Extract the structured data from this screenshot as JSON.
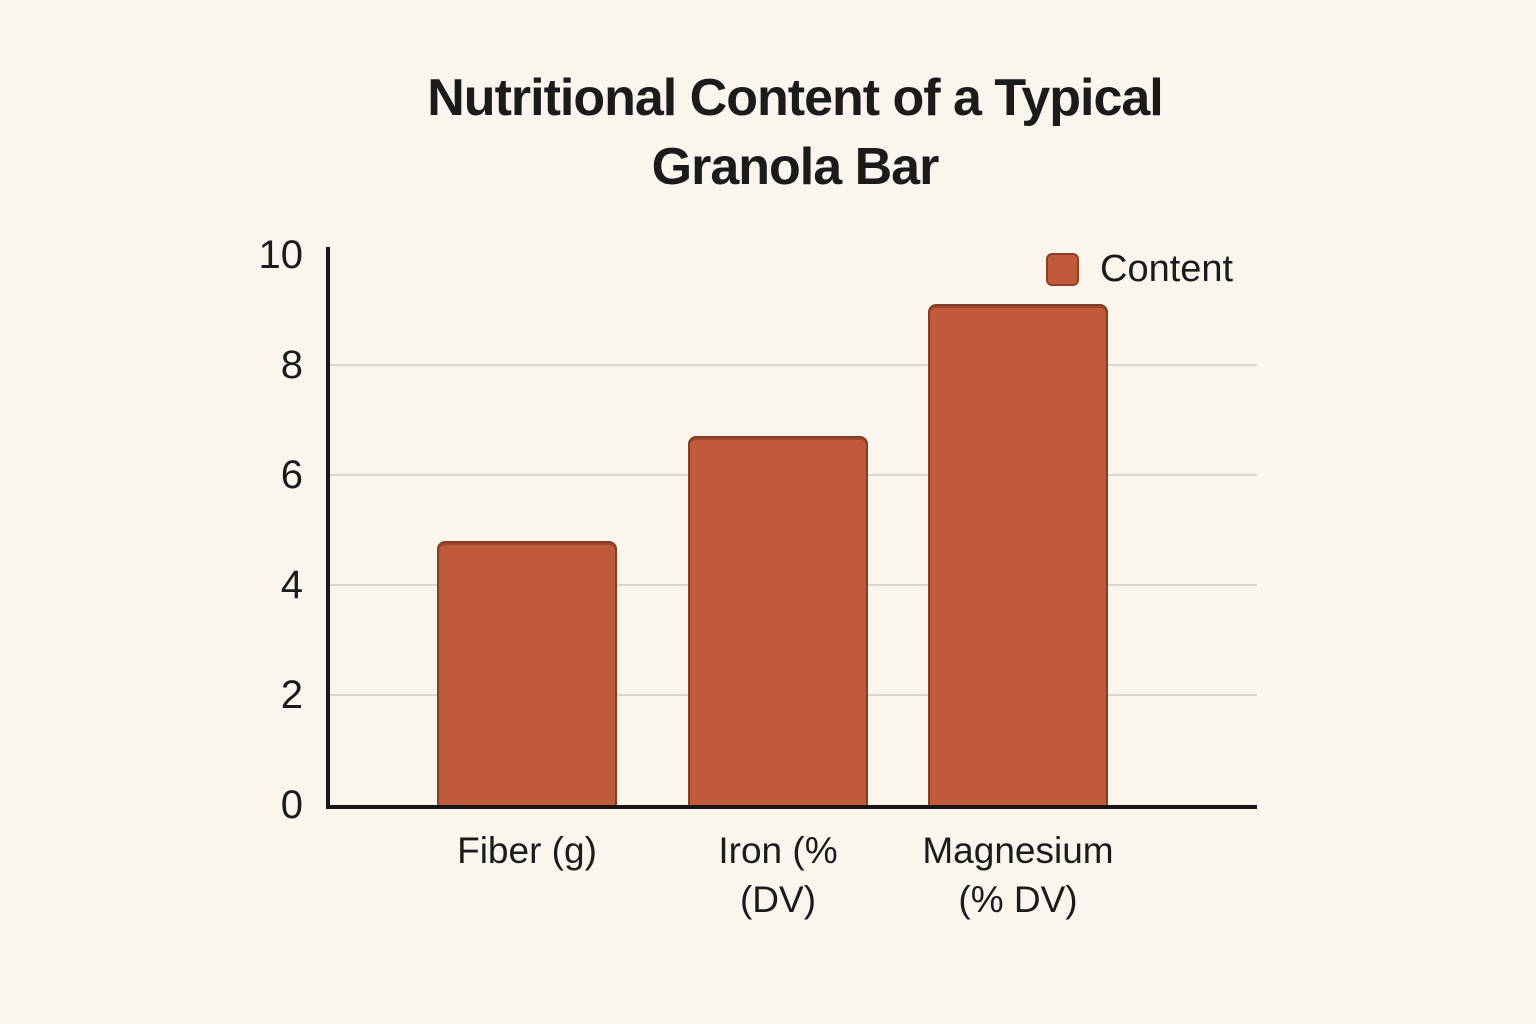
{
  "chart_data": {
    "type": "bar",
    "title": "Nutritional Content of a Typical\nGranola Bar",
    "categories": [
      "Fiber (g)",
      "Iron (%\n(DV)",
      "Magnesium\n(% DV)"
    ],
    "series": [
      {
        "name": "Content",
        "values": [
          4.8,
          6.7,
          9.1
        ]
      }
    ],
    "xlabel": "",
    "ylabel": "",
    "ylim": [
      0,
      10
    ],
    "yticks": [
      0,
      2,
      4,
      6,
      8,
      10
    ],
    "grid": "horizontal",
    "legend_position": "top-right",
    "colors": {
      "bar": "#c15a3b",
      "bar_edge": "#8f3f26",
      "background": "#faf6ed",
      "gridline": "#d9d6cf",
      "axis": "#161616",
      "text": "#1b1b1b"
    }
  }
}
